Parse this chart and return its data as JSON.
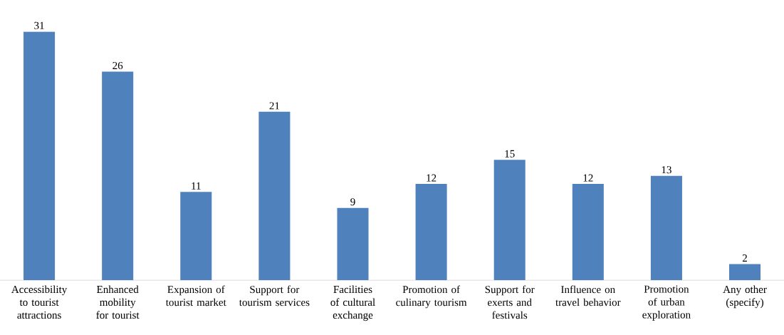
{
  "chart_data": {
    "type": "bar",
    "categories": [
      "Accessibility to tourist attractions",
      "Enhanced mobility for tourist",
      "Expansion of tourist market",
      "Support for tourism services",
      "Facilities of cultural exchange",
      "Promotion of culinary tourism",
      "Support for exerts and festivals",
      "Influence on travel behavior",
      "Promotion of urban exploration",
      "Any other (specify)"
    ],
    "values": [
      31,
      26,
      11,
      21,
      9,
      12,
      15,
      12,
      13,
      2
    ],
    "color": "#4f81bd",
    "data_labels": true
  }
}
